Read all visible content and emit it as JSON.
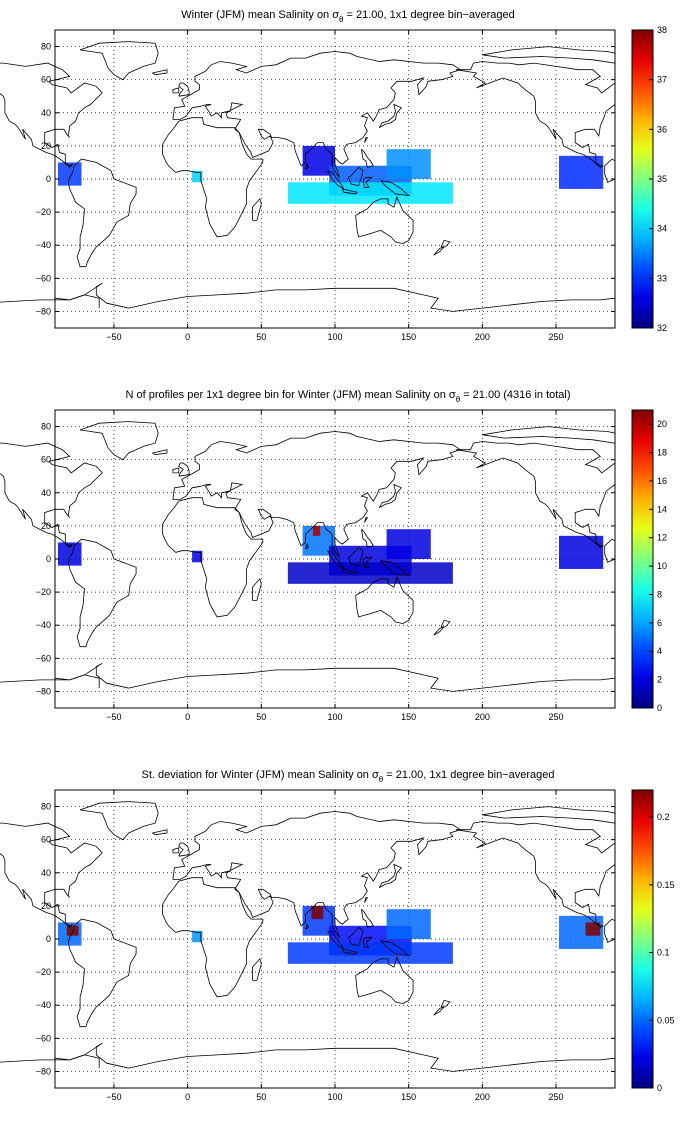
{
  "panels": [
    {
      "id": "mean_salinity",
      "title_pre": "Winter (JFM) mean Salinity on ",
      "title_sym": "σ",
      "title_sub": "θ",
      "title_post": " = 21.00, 1x1 degree bin−averaged",
      "colorbar": {
        "min": 32,
        "max": 38,
        "ticks": [
          "32",
          "33",
          "34",
          "35",
          "36",
          "37",
          "38"
        ]
      },
      "cells": [
        {
          "lon": [
            -88,
            -72
          ],
          "lat": [
            -4,
            10
          ],
          "v": 33.1
        },
        {
          "lon": [
            3,
            10
          ],
          "lat": [
            -2,
            5
          ],
          "v": 34.0
        },
        {
          "lon": [
            78,
            100
          ],
          "lat": [
            2,
            20
          ],
          "v": 32.6
        },
        {
          "lon": [
            96,
            152
          ],
          "lat": [
            -10,
            8
          ],
          "v": 33.3
        },
        {
          "lon": [
            68,
            180
          ],
          "lat": [
            -15,
            -2
          ],
          "v": 34.1
        },
        {
          "lon": [
            135,
            165
          ],
          "lat": [
            0,
            18
          ],
          "v": 33.6
        },
        {
          "lon": [
            252,
            282
          ],
          "lat": [
            -6,
            14
          ],
          "v": 33.0
        }
      ]
    },
    {
      "id": "n_profiles",
      "title_pre": "N of profiles per 1x1 degree bin for Winter (JFM) mean Salinity on ",
      "title_sym": "σ",
      "title_sub": "θ",
      "title_post": " = 21.00 (4316 in total)",
      "colorbar": {
        "min": 0,
        "max": 21,
        "ticks": [
          "0",
          "2",
          "4",
          "6",
          "8",
          "10",
          "12",
          "14",
          "16",
          "18",
          "20"
        ]
      },
      "cells": [
        {
          "lon": [
            -88,
            -72
          ],
          "lat": [
            -4,
            10
          ],
          "v": 2
        },
        {
          "lon": [
            3,
            10
          ],
          "lat": [
            -2,
            5
          ],
          "v": 2
        },
        {
          "lon": [
            78,
            100
          ],
          "lat": [
            2,
            20
          ],
          "v": 5
        },
        {
          "lon": [
            85,
            90
          ],
          "lat": [
            14,
            20
          ],
          "v": 20
        },
        {
          "lon": [
            96,
            152
          ],
          "lat": [
            -10,
            8
          ],
          "v": 2
        },
        {
          "lon": [
            68,
            180
          ],
          "lat": [
            -15,
            -2
          ],
          "v": 1.5
        },
        {
          "lon": [
            135,
            165
          ],
          "lat": [
            0,
            18
          ],
          "v": 2
        },
        {
          "lon": [
            252,
            282
          ],
          "lat": [
            -6,
            14
          ],
          "v": 2
        }
      ]
    },
    {
      "id": "st_deviation",
      "title_pre": "St. deviation for Winter (JFM) mean Salinity on ",
      "title_sym": "σ",
      "title_sub": "θ",
      "title_post": " = 21.00, 1x1 degree bin−averaged",
      "colorbar": {
        "min": 0,
        "max": 0.22,
        "ticks": [
          "0",
          "0.05",
          "0.1",
          "0.15",
          "0.2"
        ],
        "tick_values": [
          0,
          0.05,
          0.1,
          0.15,
          0.2
        ]
      },
      "cells": [
        {
          "lon": [
            -88,
            -72
          ],
          "lat": [
            -4,
            10
          ],
          "v": 0.05
        },
        {
          "lon": [
            -82,
            -74
          ],
          "lat": [
            2,
            8
          ],
          "v": 0.22
        },
        {
          "lon": [
            3,
            10
          ],
          "lat": [
            -2,
            5
          ],
          "v": 0.06
        },
        {
          "lon": [
            78,
            100
          ],
          "lat": [
            2,
            20
          ],
          "v": 0.04
        },
        {
          "lon": [
            84,
            92
          ],
          "lat": [
            12,
            20
          ],
          "v": 0.22
        },
        {
          "lon": [
            96,
            152
          ],
          "lat": [
            -10,
            8
          ],
          "v": 0.03
        },
        {
          "lon": [
            68,
            180
          ],
          "lat": [
            -15,
            -2
          ],
          "v": 0.04
        },
        {
          "lon": [
            135,
            165
          ],
          "lat": [
            0,
            18
          ],
          "v": 0.05
        },
        {
          "lon": [
            252,
            282
          ],
          "lat": [
            -6,
            14
          ],
          "v": 0.05
        },
        {
          "lon": [
            270,
            280
          ],
          "lat": [
            2,
            10
          ],
          "v": 0.22
        }
      ]
    }
  ],
  "axes": {
    "xlim": [
      -90,
      290
    ],
    "ylim": [
      -90,
      90
    ],
    "xticks": [
      -50,
      0,
      50,
      100,
      150,
      200,
      250
    ],
    "yticks": [
      -80,
      -60,
      -40,
      -20,
      0,
      20,
      40,
      60,
      80
    ],
    "xtick_labels": [
      "−50",
      "0",
      "50",
      "100",
      "150",
      "200",
      "250"
    ],
    "ytick_labels": [
      "−80",
      "−60",
      "−40",
      "−20",
      "0",
      "20",
      "40",
      "60",
      "80"
    ],
    "grid": "dotted"
  },
  "colormap": "jet"
}
